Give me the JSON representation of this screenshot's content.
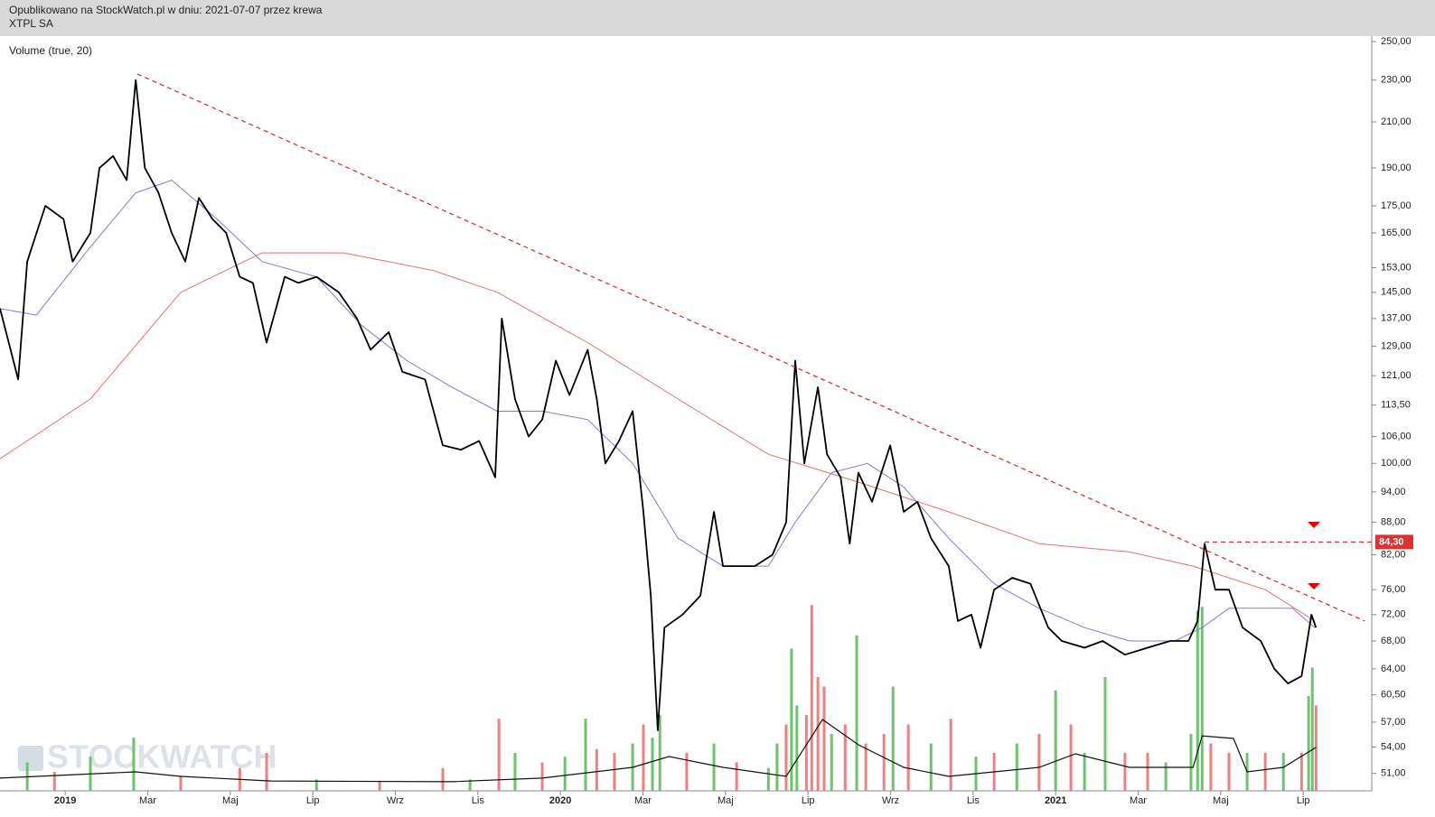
{
  "chart_data": {
    "type": "line",
    "subtitle": "Opublikowano na StockWatch.pl w dniu: 2021-07-07 przez krewa",
    "title": "XTPL SA",
    "indicator_label": "Volume (true, 20)",
    "watermark": "STOCKWATCH",
    "log_scale": true,
    "xlim": [
      -1.58,
      31.66
    ],
    "ylim": [
      49.1,
      253
    ],
    "yticks": [
      {
        "value": 250,
        "label": "250,00"
      },
      {
        "value": 230,
        "label": "230,00"
      },
      {
        "value": 210,
        "label": "210,00"
      },
      {
        "value": 190,
        "label": "190,00"
      },
      {
        "value": 175,
        "label": "175,00"
      },
      {
        "value": 165,
        "label": "165,00"
      },
      {
        "value": 153,
        "label": "153,00"
      },
      {
        "value": 145,
        "label": "145,00"
      },
      {
        "value": 137,
        "label": "137,00"
      },
      {
        "value": 129,
        "label": "129,00"
      },
      {
        "value": 121,
        "label": "121,00"
      },
      {
        "value": 113.5,
        "label": "113,50"
      },
      {
        "value": 106,
        "label": "106,00"
      },
      {
        "value": 100,
        "label": "100,00"
      },
      {
        "value": 94,
        "label": "94,00"
      },
      {
        "value": 88,
        "label": "88,00"
      },
      {
        "value": 82,
        "label": "82,00"
      },
      {
        "value": 76,
        "label": "76,00"
      },
      {
        "value": 72,
        "label": "72,00"
      },
      {
        "value": 68,
        "label": "68,00"
      },
      {
        "value": 64,
        "label": "64,00"
      },
      {
        "value": 60.5,
        "label": "60,50"
      },
      {
        "value": 57,
        "label": "57,00"
      },
      {
        "value": 54,
        "label": "54,00"
      },
      {
        "value": 51,
        "label": "51,00"
      }
    ],
    "xticks": [
      {
        "value": 0,
        "label": "2019"
      },
      {
        "value": 2,
        "label": "Mar"
      },
      {
        "value": 4,
        "label": "Maj"
      },
      {
        "value": 6,
        "label": "Lip"
      },
      {
        "value": 8,
        "label": "Wrz"
      },
      {
        "value": 10,
        "label": "Lis"
      },
      {
        "value": 12,
        "label": "2020"
      },
      {
        "value": 14,
        "label": "Mar"
      },
      {
        "value": 16,
        "label": "Maj"
      },
      {
        "value": 18,
        "label": "Lip"
      },
      {
        "value": 20,
        "label": "Wrz"
      },
      {
        "value": 22,
        "label": "Lis"
      },
      {
        "value": 24,
        "label": "2021"
      },
      {
        "value": 26,
        "label": "Mar"
      },
      {
        "value": 28,
        "label": "Maj"
      },
      {
        "value": 30,
        "label": "Lip"
      }
    ],
    "series": [
      {
        "color": "#000000",
        "width": 1.8,
        "x": [
          -1.58,
          -1.14,
          -0.92,
          -0.48,
          -0.04,
          0.18,
          0.61,
          0.83,
          1.16,
          1.49,
          1.71,
          1.93,
          2.26,
          2.58,
          2.91,
          3.24,
          3.57,
          3.9,
          4.23,
          4.55,
          4.88,
          5.32,
          5.65,
          6.09,
          6.63,
          7.07,
          7.4,
          7.84,
          8.17,
          8.72,
          9.15,
          9.59,
          10.03,
          10.42,
          10.58,
          10.9,
          11.23,
          11.56,
          11.89,
          12.22,
          12.66,
          12.88,
          13.09,
          13.42,
          13.75,
          14.01,
          14.19,
          14.36,
          14.52,
          14.96,
          15.39,
          15.72,
          15.94,
          16.27,
          16.71,
          17.14,
          17.47,
          17.69,
          17.91,
          18.24,
          18.46,
          18.79,
          19.01,
          19.22,
          19.55,
          19.99,
          20.32,
          20.65,
          20.98,
          21.41,
          21.63,
          21.96,
          22.18,
          22.51,
          22.95,
          23.39,
          23.82,
          24.15,
          24.7,
          25.14,
          25.68,
          26.23,
          26.78,
          27.22,
          27.44,
          27.61,
          27.87,
          28.2,
          28.53,
          28.97,
          29.3,
          29.63,
          29.96,
          30.2,
          30.31
        ],
        "values": [
          140,
          120,
          155,
          175,
          170,
          155,
          165,
          190,
          195,
          185,
          230,
          190,
          180,
          165,
          155,
          178,
          170,
          165,
          150,
          148,
          130,
          150,
          148,
          150,
          145,
          137,
          128,
          133,
          122,
          120,
          104,
          103,
          105,
          97,
          137,
          115,
          106,
          110,
          125,
          116,
          128,
          115,
          100,
          105,
          112,
          90,
          75,
          56,
          70,
          72,
          75,
          90,
          80,
          80,
          80,
          82,
          88,
          125,
          100,
          118,
          102,
          97,
          84,
          98,
          92,
          104,
          90,
          92,
          85,
          80,
          71,
          72,
          67,
          76,
          78,
          77,
          70,
          68,
          67,
          68,
          66,
          67,
          68,
          68,
          71,
          84,
          76,
          76,
          70,
          68,
          64,
          62,
          63,
          72,
          70
        ]
      },
      {
        "color": "#7b7bdc",
        "width": 1,
        "x": [
          -1.58,
          -0.7,
          0.61,
          1.71,
          2.58,
          3.68,
          4.77,
          6.09,
          7.18,
          8.28,
          9.37,
          10.47,
          11.56,
          12.66,
          13.75,
          14.85,
          15.94,
          17.04,
          17.69,
          18.57,
          19.44,
          20.32,
          21.41,
          22.51,
          23.6,
          24.7,
          25.79,
          26.89,
          27.55,
          28.2,
          29.08,
          29.74,
          30.28
        ],
        "values": [
          140,
          138,
          160,
          180,
          185,
          170,
          155,
          150,
          135,
          125,
          118,
          112,
          112,
          110,
          100,
          85,
          80,
          80,
          88,
          98,
          100,
          95,
          85,
          77,
          73,
          70,
          68,
          68,
          70,
          73,
          73,
          73,
          70
        ]
      },
      {
        "color": "#e8706c",
        "width": 1,
        "x": [
          -1.58,
          0.61,
          2.8,
          4.77,
          6.74,
          8.93,
          10.47,
          12.66,
          14.85,
          17.04,
          19.22,
          21.41,
          23.6,
          25.79,
          27.33,
          29.08,
          30.28
        ],
        "values": [
          101,
          115,
          145,
          158,
          158,
          152,
          145,
          130,
          115,
          102,
          96,
          90,
          84,
          82.5,
          80,
          76,
          71
        ]
      }
    ],
    "volume": {
      "y2lim": [
        0,
        100
      ],
      "x": [
        -0.92,
        -0.26,
        0.61,
        1.66,
        2.8,
        4.23,
        4.88,
        6.09,
        7.62,
        9.15,
        9.81,
        10.51,
        10.9,
        11.56,
        12.11,
        12.61,
        12.88,
        13.31,
        13.75,
        14.01,
        14.23,
        14.41,
        15.06,
        15.72,
        16.27,
        17.04,
        17.25,
        17.47,
        17.6,
        17.73,
        17.96,
        18.09,
        18.24,
        18.39,
        18.57,
        18.9,
        19.18,
        19.4,
        19.84,
        20.06,
        20.43,
        20.98,
        21.46,
        22.07,
        22.51,
        23.06,
        23.6,
        24.0,
        24.37,
        24.7,
        25.2,
        25.68,
        26.23,
        26.67,
        27.28,
        27.44,
        27.55,
        27.76,
        28.2,
        28.64,
        29.08,
        29.52,
        29.96,
        30.13,
        30.22,
        30.31
      ],
      "values": [
        15,
        10,
        18,
        28,
        8,
        12,
        20,
        6,
        5,
        12,
        6,
        38,
        20,
        15,
        18,
        38,
        22,
        20,
        25,
        35,
        28,
        40,
        20,
        25,
        15,
        12,
        25,
        35,
        75,
        45,
        40,
        98,
        60,
        55,
        30,
        35,
        82,
        25,
        30,
        55,
        35,
        25,
        38,
        18,
        20,
        25,
        30,
        53,
        35,
        20,
        60,
        20,
        20,
        15,
        30,
        95,
        97,
        25,
        20,
        20,
        20,
        20,
        20,
        50,
        65,
        45
      ],
      "colors": [
        "#6cc46c",
        "#f08080",
        "#6cc46c",
        "#6cc46c",
        "#f08080",
        "#f08080",
        "#f08080",
        "#6cc46c",
        "#f08080",
        "#f08080",
        "#6cc46c",
        "#f08080",
        "#6cc46c",
        "#f08080",
        "#6cc46c",
        "#6cc46c",
        "#f08080",
        "#f08080",
        "#6cc46c",
        "#f08080",
        "#6cc46c",
        "#6cc46c",
        "#f08080",
        "#6cc46c",
        "#f08080",
        "#6cc46c",
        "#6cc46c",
        "#f08080",
        "#6cc46c",
        "#6cc46c",
        "#f08080",
        "#f08080",
        "#f08080",
        "#f08080",
        "#6cc46c",
        "#f08080",
        "#6cc46c",
        "#f08080",
        "#f08080",
        "#6cc46c",
        "#f08080",
        "#6cc46c",
        "#f08080",
        "#6cc46c",
        "#f08080",
        "#6cc46c",
        "#f08080",
        "#6cc46c",
        "#f08080",
        "#6cc46c",
        "#6cc46c",
        "#f08080",
        "#f08080",
        "#6cc46c",
        "#6cc46c",
        "#6cc46c",
        "#6cc46c",
        "#f08080",
        "#f08080",
        "#6cc46c",
        "#f08080",
        "#6cc46c",
        "#f08080",
        "#6cc46c",
        "#6cc46c",
        "#f08080"
      ],
      "ma": {
        "color": "#111111",
        "x": [
          -1.58,
          1.71,
          2.8,
          4.99,
          9.37,
          11.56,
          13.75,
          14.63,
          15.94,
          17.47,
          18.35,
          19.22,
          20.32,
          21.41,
          23.6,
          24.48,
          25.79,
          27.33,
          27.55,
          28.31,
          28.64,
          29.52,
          30.31
        ],
        "values": [
          6.7,
          10,
          7.6,
          5.2,
          4.8,
          6.7,
          12.4,
          18.1,
          12.4,
          7.6,
          37.6,
          24.3,
          12.4,
          7.6,
          12.4,
          19.5,
          12.4,
          12.4,
          29,
          27.6,
          10,
          12.4,
          22.9
        ]
      }
    },
    "trendline": {
      "color": "#e03030",
      "x": [
        1.75,
        31.49
      ],
      "values": [
        233,
        71
      ]
    },
    "level": {
      "value": 84.3,
      "label": "84,30",
      "x": 27.61,
      "color": "#e03030"
    }
  }
}
